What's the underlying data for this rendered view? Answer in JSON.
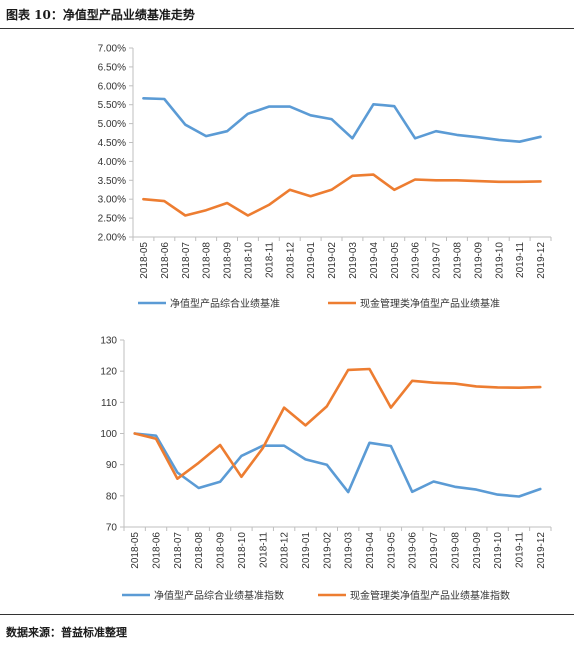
{
  "figure_title": "图表 10：净值型产品业绩基准走势",
  "source_note": "数据来源：普益标准整理",
  "colors": {
    "blue": "#5b9bd5",
    "orange": "#ed7d31",
    "axis": "#bfbfbf"
  },
  "chart_data": [
    {
      "type": "line",
      "title": "",
      "categories": [
        "2018-05",
        "2018-06",
        "2018-07",
        "2018-08",
        "2018-09",
        "2018-10",
        "2018-11",
        "2018-12",
        "2019-01",
        "2019-02",
        "2019-03",
        "2019-04",
        "2019-05",
        "2019-06",
        "2019-07",
        "2019-08",
        "2019-09",
        "2019-10",
        "2019-11",
        "2019-12"
      ],
      "ylim": [
        2.0,
        7.0
      ],
      "yticks": [
        "2.00%",
        "2.50%",
        "3.00%",
        "3.50%",
        "4.00%",
        "4.50%",
        "5.00%",
        "5.50%",
        "6.00%",
        "6.50%",
        "7.00%"
      ],
      "grid": false,
      "legend_position": "bottom",
      "series": [
        {
          "name": "净值型产品综合业绩基准",
          "color": "#5b9bd5",
          "values": [
            5.67,
            5.65,
            4.97,
            4.67,
            4.8,
            5.26,
            5.45,
            5.45,
            5.22,
            5.12,
            4.61,
            5.51,
            5.46,
            4.61,
            4.8,
            4.7,
            4.64,
            4.57,
            4.52,
            4.65
          ]
        },
        {
          "name": "现金管理类净值型产品业绩基准",
          "color": "#ed7d31",
          "values": [
            3.0,
            2.95,
            2.57,
            2.71,
            2.9,
            2.57,
            2.85,
            3.25,
            3.08,
            3.25,
            3.62,
            3.65,
            3.25,
            3.52,
            3.5,
            3.5,
            3.48,
            3.46,
            3.46,
            3.47
          ]
        }
      ]
    },
    {
      "type": "line",
      "title": "",
      "categories": [
        "2018-05",
        "2018-06",
        "2018-07",
        "2018-08",
        "2018-09",
        "2018-10",
        "2018-11",
        "2018-12",
        "2019-01",
        "2019-02",
        "2019-03",
        "2019-04",
        "2019-05",
        "2019-06",
        "2019-07",
        "2019-08",
        "2019-09",
        "2019-10",
        "2019-11",
        "2019-12"
      ],
      "ylim": [
        70,
        130
      ],
      "yticks": [
        "70",
        "80",
        "90",
        "100",
        "110",
        "120",
        "130"
      ],
      "grid": false,
      "legend_position": "bottom",
      "series": [
        {
          "name": "净值型产品综合业绩基准指数",
          "color": "#5b9bd5",
          "values": [
            100,
            99.3,
            87.5,
            82.5,
            84.5,
            92.8,
            96.1,
            96.1,
            91.7,
            90.0,
            81.2,
            97.0,
            96.0,
            81.3,
            84.6,
            82.9,
            82.0,
            80.4,
            79.8,
            82.2
          ]
        },
        {
          "name": "现金管理类净值型产品业绩基准指数",
          "color": "#ed7d31",
          "values": [
            100,
            98.3,
            85.5,
            90.6,
            96.3,
            86.1,
            95.3,
            108.3,
            102.6,
            108.7,
            120.4,
            120.7,
            108.3,
            116.9,
            116.3,
            116.0,
            115.1,
            114.8,
            114.7,
            114.9
          ]
        }
      ]
    }
  ]
}
